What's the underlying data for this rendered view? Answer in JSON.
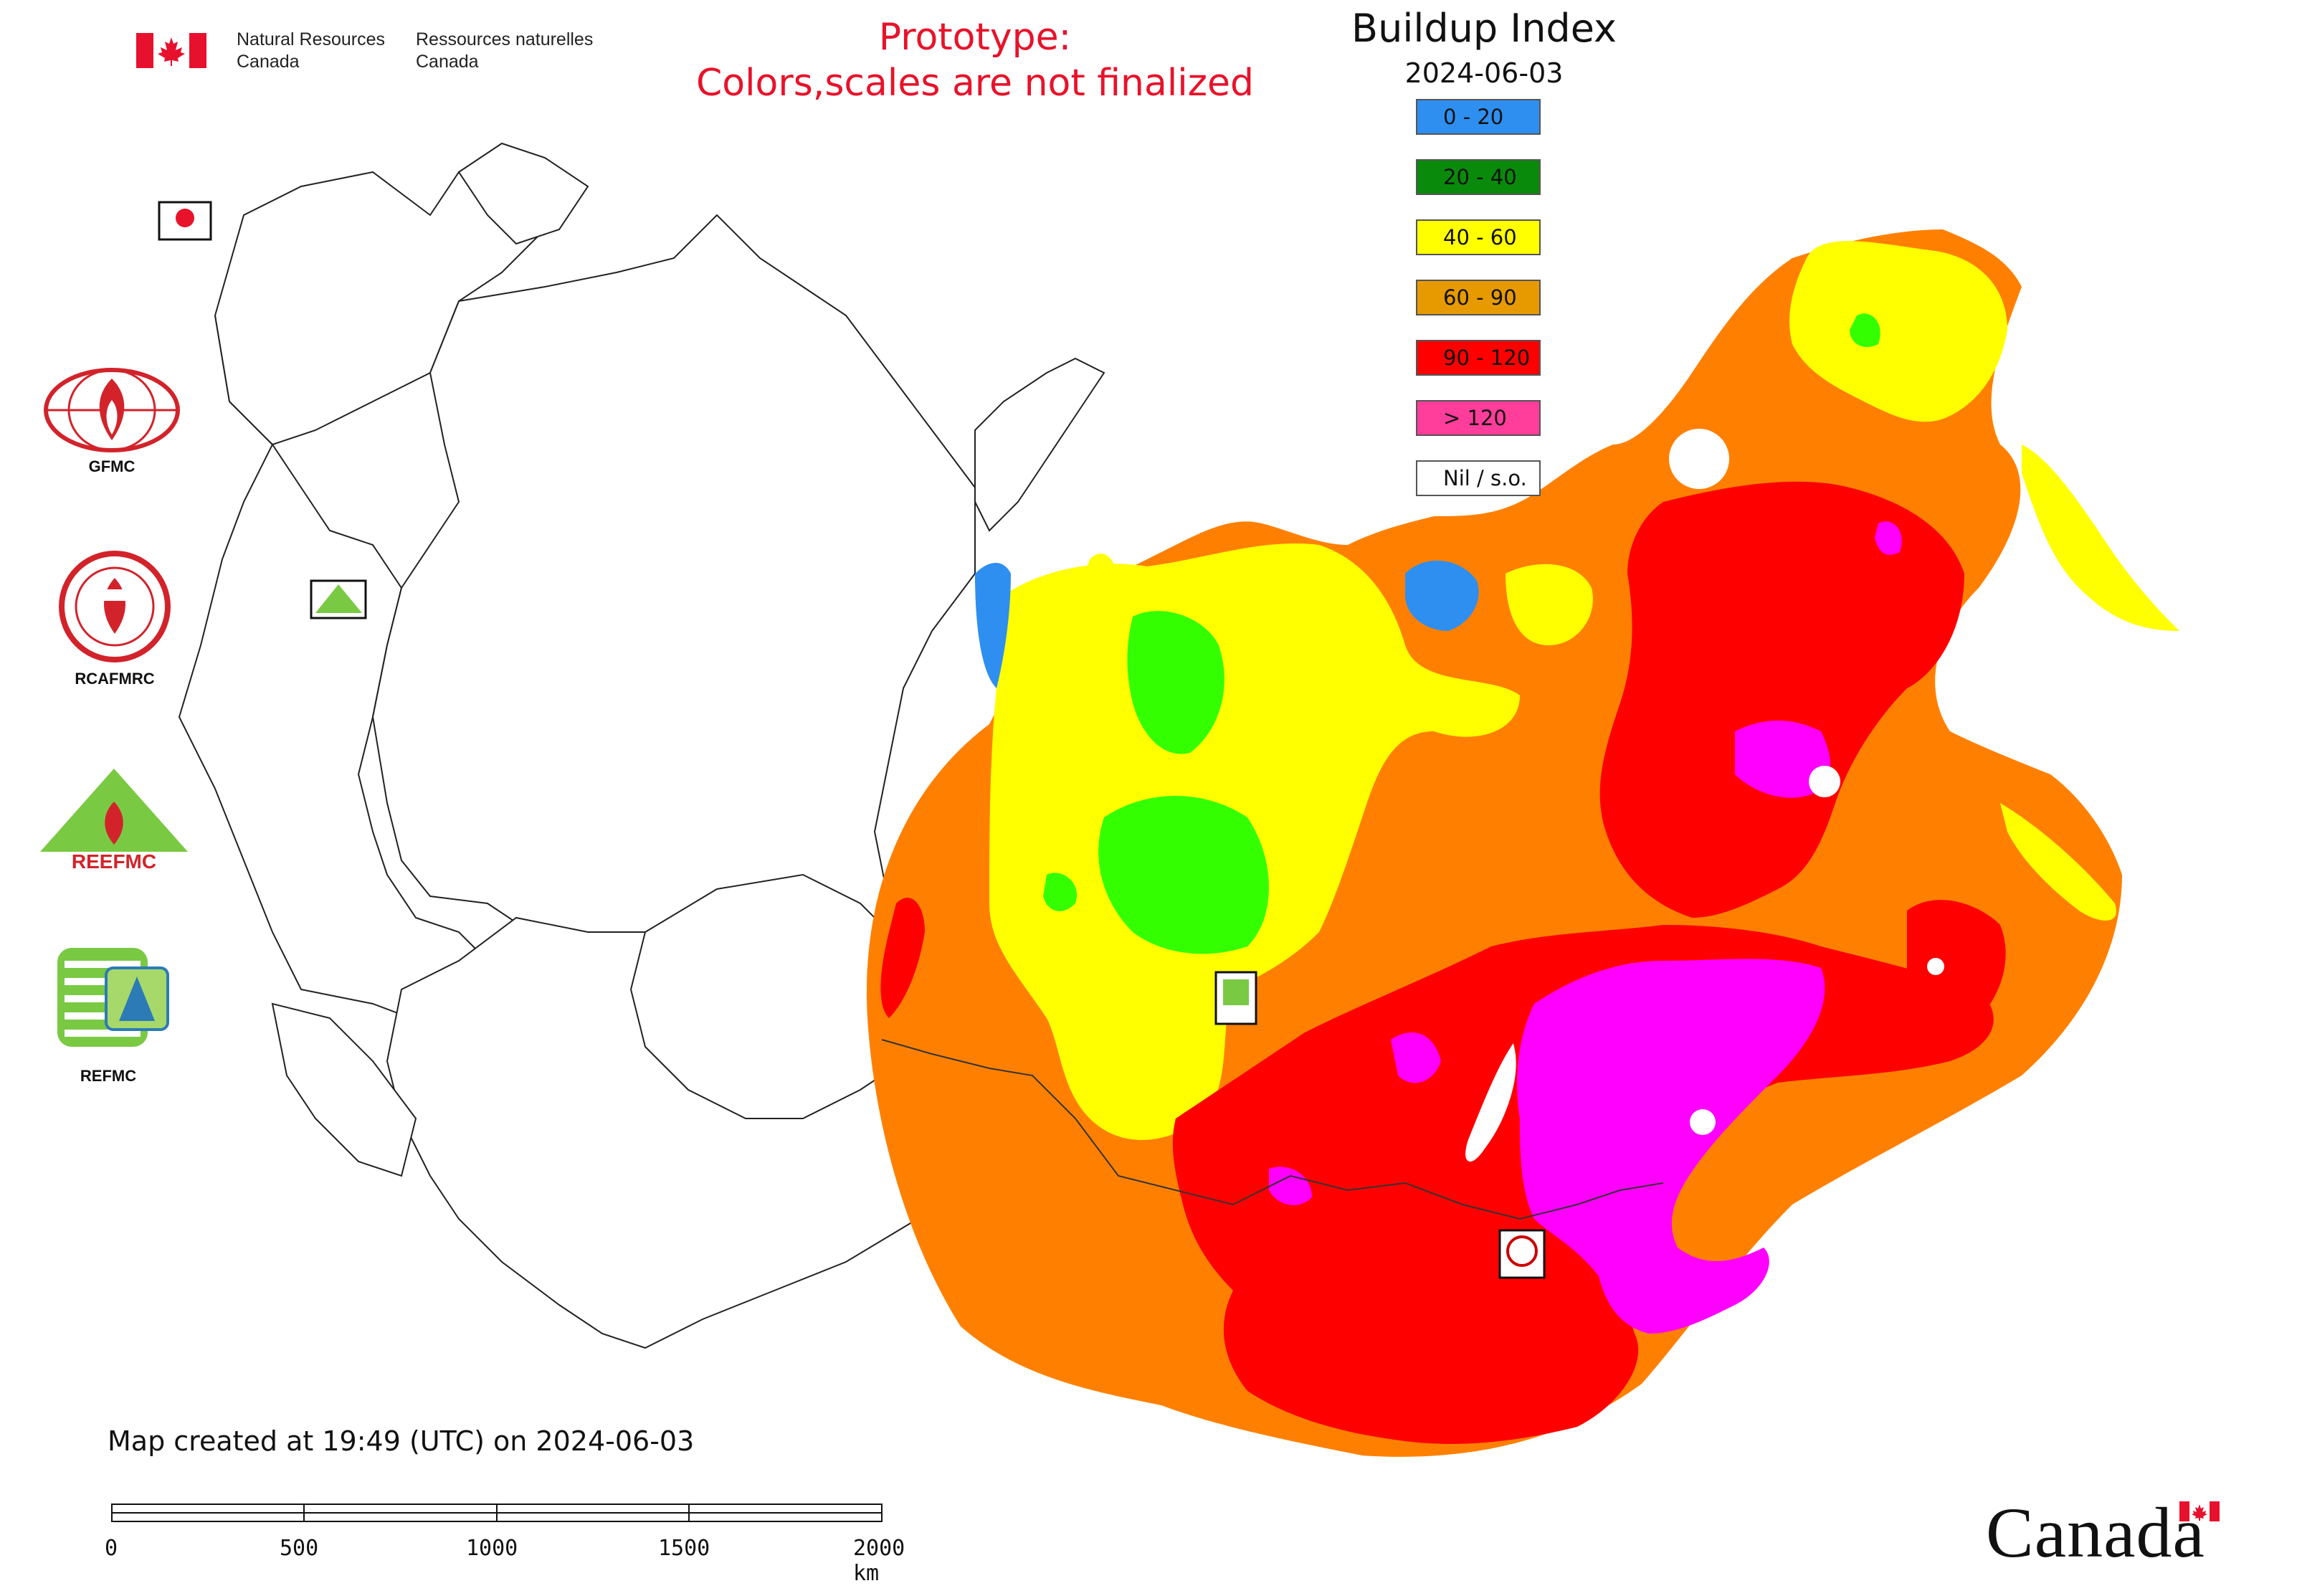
{
  "header": {
    "department_en_line1": "Natural Resources",
    "department_en_line2": "Canada",
    "department_fr_line1": "Ressources naturelles",
    "department_fr_line2": "Canada",
    "prototype_line1": "Prototype:",
    "prototype_line2": "Colors,scales are not finalized",
    "prototype_color": "#e8122a"
  },
  "legend": {
    "title": "Buildup Index",
    "date": "2024-06-03",
    "classes": [
      {
        "label": "0 - 20",
        "color": "#2e8ff0"
      },
      {
        "label": "20 - 40",
        "color": "#0a8a0a"
      },
      {
        "label": "40 - 60",
        "color": "#ffff00"
      },
      {
        "label": "60 - 90",
        "color": "#e69a00"
      },
      {
        "label": "90 - 120",
        "color": "#ff0000"
      },
      {
        "label": "> 120",
        "color": "#ff3d9a"
      },
      {
        "label": "Nil / s.o.",
        "color": "#ffffff"
      }
    ]
  },
  "map_colors": {
    "yellow": "#ffff00",
    "bright_green": "#33ff00",
    "orange": "#ff8000",
    "red": "#ff0000",
    "magenta": "#ff00ff",
    "blue": "#2e8ff0",
    "outline": "#222222"
  },
  "logos": [
    {
      "name": "GFMC",
      "label": "GFMC"
    },
    {
      "name": "RCAFMRC",
      "label": "RCAFMRC"
    },
    {
      "name": "REEFMC",
      "label": "REEFMC"
    },
    {
      "name": "REFMC",
      "label": "REFMC"
    }
  ],
  "footer": {
    "created": "Map created at 19:49 (UTC) on 2024-06-03",
    "scale_ticks": [
      "0",
      "500",
      "1000",
      "1500",
      "2000 km"
    ],
    "wordmark": "Canada"
  }
}
